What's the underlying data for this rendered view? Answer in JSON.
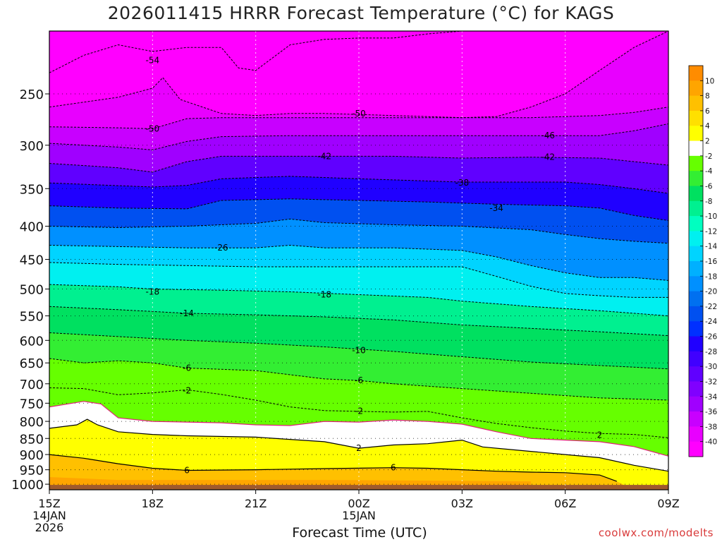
{
  "chart_data": {
    "type": "heatmap",
    "title": "2026011415 HRRR Forecast Temperature (°C) for KAGS",
    "xlabel": "Forecast Time (UTC)",
    "ylabel": "",
    "credit": "coolwx.com/modelts",
    "x_range_hours": [
      0,
      18
    ],
    "y_range_hpa": [
      1020,
      200
    ],
    "y_scale": "log-pressure",
    "y_ticks": [
      250,
      300,
      350,
      400,
      450,
      500,
      550,
      600,
      650,
      700,
      750,
      800,
      850,
      900,
      950,
      1000
    ],
    "x_ticks": [
      {
        "h": 0,
        "label": "15Z",
        "sub": [
          "14JAN",
          "2026"
        ]
      },
      {
        "h": 3,
        "label": "18Z",
        "sub": []
      },
      {
        "h": 6,
        "label": "21Z",
        "sub": []
      },
      {
        "h": 9,
        "label": "00Z",
        "sub": [
          "15JAN"
        ]
      },
      {
        "h": 12,
        "label": "03Z",
        "sub": []
      },
      {
        "h": 15,
        "label": "06Z",
        "sub": []
      },
      {
        "h": 18,
        "label": "09Z",
        "sub": []
      }
    ],
    "grid": true,
    "legend_position": "right",
    "colorbar": {
      "labels": [
        "10",
        "8",
        "6",
        "4",
        "2",
        "-2",
        "-4",
        "-6",
        "-8",
        "-10",
        "-12",
        "-14",
        "-16",
        "-18",
        "-20",
        "-22",
        "-24",
        "-26",
        "-28",
        "-30",
        "-32",
        "-34",
        "-36",
        "-38",
        "-40"
      ],
      "colors": [
        "#ff8c00",
        "#ffa500",
        "#ffc000",
        "#ffe000",
        "#ffff00",
        "#ffffff",
        "#66ff00",
        "#33ee33",
        "#00e060",
        "#00f090",
        "#00ffc0",
        "#00f0f0",
        "#00d4ff",
        "#00b0ff",
        "#0090ff",
        "#0070f0",
        "#0050f0",
        "#0030ff",
        "#2000ff",
        "#4000ff",
        "#6000ff",
        "#8000ff",
        "#a000ff",
        "#c800ff",
        "#e800ff",
        "#ff00ff"
      ]
    },
    "isotherms": [
      {
        "label": "-54",
        "labels_at": [
          {
            "h": 3,
            "p": 222
          }
        ],
        "points": [
          [
            0,
            232
          ],
          [
            1,
            218
          ],
          [
            2,
            210
          ],
          [
            3,
            215
          ],
          [
            4,
            212
          ],
          [
            5,
            212
          ],
          [
            5.5,
            228
          ],
          [
            6,
            230
          ],
          [
            7,
            210
          ],
          [
            8,
            206
          ],
          [
            9,
            205
          ],
          [
            10,
            205
          ],
          [
            11,
            202
          ],
          [
            12,
            200
          ],
          [
            13,
            200
          ]
        ]
      },
      {
        "label": "-50",
        "labels_at": [
          {
            "h": 3,
            "p": 283
          },
          {
            "h": 9,
            "p": 268
          }
        ],
        "points": [
          [
            0,
            262
          ],
          [
            2,
            253
          ],
          [
            3,
            245
          ],
          [
            3.3,
            236
          ],
          [
            3.8,
            255
          ],
          [
            5,
            268
          ],
          [
            6,
            270
          ],
          [
            7,
            268
          ],
          [
            8,
            268
          ],
          [
            9,
            269
          ],
          [
            10,
            270
          ],
          [
            12,
            272
          ],
          [
            13,
            271
          ],
          [
            14,
            262
          ],
          [
            15,
            250
          ],
          [
            16,
            230
          ],
          [
            17,
            212
          ],
          [
            18,
            200
          ]
        ]
      },
      {
        "label": "-50",
        "labels_at": [],
        "points": [
          [
            0,
            281
          ],
          [
            2,
            282
          ],
          [
            3,
            283
          ],
          [
            4,
            273
          ],
          [
            5,
            272
          ],
          [
            7,
            272
          ],
          [
            9,
            272
          ],
          [
            12,
            272
          ],
          [
            14,
            272
          ],
          [
            16,
            270
          ],
          [
            17,
            267
          ],
          [
            18,
            262
          ]
        ]
      },
      {
        "label": "-46",
        "labels_at": [
          {
            "h": 14.5,
            "p": 290
          }
        ],
        "points": [
          [
            0,
            298
          ],
          [
            2,
            302
          ],
          [
            3,
            305
          ],
          [
            4,
            296
          ],
          [
            5,
            291
          ],
          [
            7,
            290
          ],
          [
            9,
            290
          ],
          [
            12,
            290
          ],
          [
            14,
            290
          ],
          [
            16,
            290
          ],
          [
            17,
            285
          ],
          [
            18,
            278
          ]
        ]
      },
      {
        "label": "-42",
        "labels_at": [
          {
            "h": 8,
            "p": 312
          },
          {
            "h": 14.5,
            "p": 313
          }
        ],
        "points": [
          [
            0,
            320
          ],
          [
            2,
            325
          ],
          [
            3,
            330
          ],
          [
            4,
            318
          ],
          [
            5,
            312
          ],
          [
            8,
            312
          ],
          [
            10,
            312
          ],
          [
            12,
            314
          ],
          [
            14,
            313
          ],
          [
            16,
            314
          ],
          [
            17,
            318
          ],
          [
            18,
            322
          ]
        ]
      },
      {
        "label": "-38",
        "labels_at": [
          {
            "h": 12,
            "p": 343
          }
        ],
        "points": [
          [
            0,
            343
          ],
          [
            3,
            348
          ],
          [
            4,
            346
          ],
          [
            5,
            338
          ],
          [
            7,
            335
          ],
          [
            9,
            338
          ],
          [
            12,
            342
          ],
          [
            14,
            342
          ],
          [
            15,
            342
          ],
          [
            16,
            345
          ],
          [
            17,
            350
          ],
          [
            18,
            356
          ]
        ]
      },
      {
        "label": "-34",
        "labels_at": [
          {
            "h": 13,
            "p": 375
          }
        ],
        "points": [
          [
            0,
            372
          ],
          [
            2,
            375
          ],
          [
            4,
            376
          ],
          [
            5,
            365
          ],
          [
            7,
            363
          ],
          [
            9,
            365
          ],
          [
            11,
            367
          ],
          [
            13,
            370
          ],
          [
            15,
            372
          ],
          [
            16,
            375
          ],
          [
            17,
            385
          ],
          [
            18,
            392
          ]
        ]
      },
      {
        "label": "-30",
        "labels_at": [],
        "points": [
          [
            0,
            400
          ],
          [
            2,
            402
          ],
          [
            4,
            400
          ],
          [
            6,
            396
          ],
          [
            7,
            390
          ],
          [
            8,
            395
          ],
          [
            10,
            398
          ],
          [
            12,
            400
          ],
          [
            14,
            405
          ],
          [
            15,
            412
          ],
          [
            16,
            418
          ],
          [
            17,
            422
          ],
          [
            18,
            425
          ]
        ]
      },
      {
        "label": "-26",
        "labels_at": [
          {
            "h": 5,
            "p": 432
          }
        ],
        "points": [
          [
            0,
            428
          ],
          [
            2,
            430
          ],
          [
            4,
            432
          ],
          [
            5,
            432
          ],
          [
            6,
            432
          ],
          [
            7,
            428
          ],
          [
            8,
            432
          ],
          [
            10,
            432
          ],
          [
            12,
            436
          ],
          [
            13,
            446
          ],
          [
            14,
            460
          ],
          [
            15,
            472
          ],
          [
            16,
            480
          ],
          [
            17,
            480
          ],
          [
            18,
            485
          ]
        ]
      },
      {
        "label": "-22",
        "labels_at": [],
        "points": [
          [
            0,
            455
          ],
          [
            2,
            458
          ],
          [
            4,
            460
          ],
          [
            6,
            462
          ],
          [
            8,
            462
          ],
          [
            10,
            462
          ],
          [
            12,
            462
          ],
          [
            13,
            478
          ],
          [
            14,
            495
          ],
          [
            15,
            508
          ],
          [
            16,
            512
          ],
          [
            17,
            515
          ],
          [
            18,
            515
          ]
        ]
      },
      {
        "label": "-18",
        "labels_at": [
          {
            "h": 3,
            "p": 505
          },
          {
            "h": 8,
            "p": 510
          }
        ],
        "points": [
          [
            0,
            492
          ],
          [
            2,
            496
          ],
          [
            3,
            500
          ],
          [
            5,
            502
          ],
          [
            7,
            505
          ],
          [
            9,
            510
          ],
          [
            11,
            515
          ],
          [
            12,
            522
          ],
          [
            14,
            532
          ],
          [
            16,
            540
          ],
          [
            18,
            550
          ]
        ]
      },
      {
        "label": "-14",
        "labels_at": [
          {
            "h": 4,
            "p": 545
          }
        ],
        "points": [
          [
            0,
            532
          ],
          [
            2,
            538
          ],
          [
            4,
            545
          ],
          [
            6,
            548
          ],
          [
            8,
            552
          ],
          [
            10,
            558
          ],
          [
            12,
            568
          ],
          [
            14,
            575
          ],
          [
            16,
            582
          ],
          [
            18,
            590
          ]
        ]
      },
      {
        "label": "-10",
        "labels_at": [
          {
            "h": 9,
            "p": 622
          }
        ],
        "points": [
          [
            0,
            584
          ],
          [
            2,
            592
          ],
          [
            4,
            600
          ],
          [
            6,
            606
          ],
          [
            8,
            614
          ],
          [
            10,
            624
          ],
          [
            12,
            636
          ],
          [
            14,
            648
          ],
          [
            16,
            656
          ],
          [
            18,
            664
          ]
        ]
      },
      {
        "label": "-6",
        "labels_at": [
          {
            "h": 4,
            "p": 662
          },
          {
            "h": 9,
            "p": 692
          }
        ],
        "points": [
          [
            0,
            640
          ],
          [
            1,
            650
          ],
          [
            2,
            645
          ],
          [
            3,
            650
          ],
          [
            4,
            662
          ],
          [
            6,
            668
          ],
          [
            8,
            688
          ],
          [
            9,
            692
          ],
          [
            10,
            700
          ],
          [
            12,
            712
          ],
          [
            14,
            724
          ],
          [
            16,
            736
          ],
          [
            18,
            742
          ]
        ]
      },
      {
        "label": "-2",
        "labels_at": [
          {
            "h": 4,
            "p": 717
          },
          {
            "h": 9,
            "p": 771
          }
        ],
        "points": [
          [
            0,
            710
          ],
          [
            1,
            712
          ],
          [
            2,
            728
          ],
          [
            3,
            723
          ],
          [
            4,
            715
          ],
          [
            5,
            727
          ],
          [
            6,
            742
          ],
          [
            7,
            760
          ],
          [
            8,
            770
          ],
          [
            9,
            772
          ],
          [
            10,
            774
          ],
          [
            11,
            772
          ],
          [
            12,
            790
          ],
          [
            13,
            806
          ],
          [
            14,
            818
          ],
          [
            15,
            828
          ],
          [
            16,
            835
          ],
          [
            17,
            838
          ],
          [
            18,
            848
          ]
        ]
      }
    ],
    "warm_isotherms": [
      {
        "label": "2",
        "labels_at": [
          {
            "h": 9,
            "p": 880
          },
          {
            "h": 16,
            "p": 840
          }
        ],
        "points": [
          [
            0,
            820
          ],
          [
            0.8,
            810
          ],
          [
            1.1,
            794
          ],
          [
            1.4,
            810
          ],
          [
            2,
            830
          ],
          [
            3,
            838
          ],
          [
            4,
            842
          ],
          [
            6,
            846
          ],
          [
            8,
            860
          ],
          [
            9,
            880
          ],
          [
            10,
            870
          ],
          [
            11,
            866
          ],
          [
            12,
            855
          ],
          [
            12.6,
            876
          ],
          [
            14,
            890
          ],
          [
            15,
            900
          ],
          [
            16,
            910
          ],
          [
            17,
            935
          ],
          [
            18,
            955
          ]
        ]
      },
      {
        "label": "6",
        "labels_at": [
          {
            "h": 4,
            "p": 952
          },
          {
            "h": 10,
            "p": 943
          }
        ],
        "points": [
          [
            0,
            900
          ],
          [
            1,
            912
          ],
          [
            2,
            930
          ],
          [
            3,
            945
          ],
          [
            4,
            952
          ],
          [
            6,
            950
          ],
          [
            8,
            946
          ],
          [
            10,
            943
          ],
          [
            11,
            945
          ],
          [
            12,
            950
          ],
          [
            13,
            955
          ],
          [
            14,
            958
          ],
          [
            15,
            960
          ],
          [
            16,
            968
          ],
          [
            16.5,
            990
          ]
        ]
      }
    ],
    "melting_line": {
      "label": "0",
      "points": [
        [
          0,
          760
        ],
        [
          1,
          745
        ],
        [
          1.5,
          752
        ],
        [
          2,
          790
        ],
        [
          3,
          800
        ],
        [
          4,
          802
        ],
        [
          5,
          804
        ],
        [
          6,
          810
        ],
        [
          7,
          812
        ],
        [
          8,
          800
        ],
        [
          9,
          802
        ],
        [
          10,
          796
        ],
        [
          11,
          800
        ],
        [
          12,
          808
        ],
        [
          13,
          830
        ],
        [
          14,
          850
        ],
        [
          15,
          855
        ],
        [
          16,
          860
        ],
        [
          17,
          875
        ],
        [
          18,
          905
        ]
      ]
    }
  }
}
